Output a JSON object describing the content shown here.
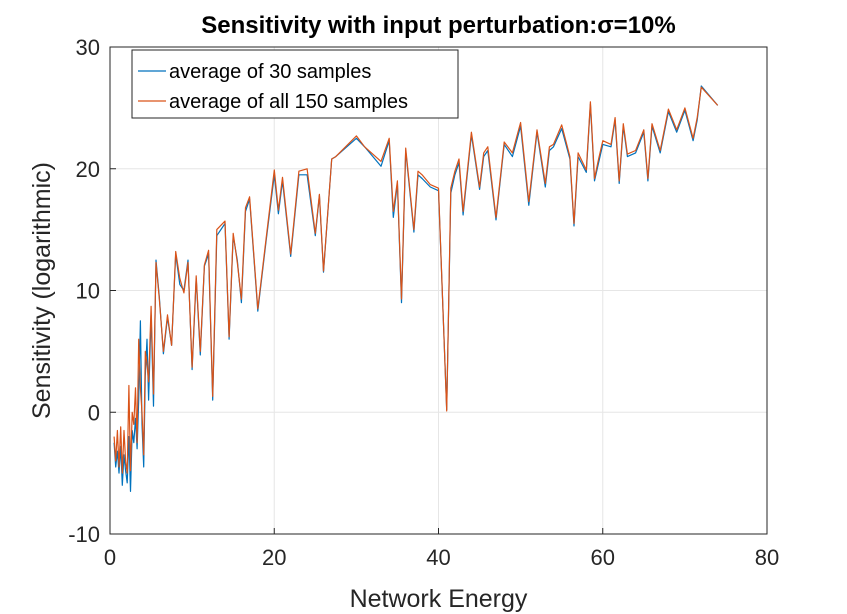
{
  "chart_data": {
    "type": "line",
    "title": "Sensitivity with input perturbation:σ=10%",
    "xlabel": "Network Energy",
    "ylabel": "Sensitivity (logarithmic)",
    "xlim": [
      0,
      80
    ],
    "ylim": [
      -10,
      30
    ],
    "xticks": [
      "0",
      "20",
      "40",
      "60",
      "80"
    ],
    "yticks": [
      "-10",
      "0",
      "10",
      "20",
      "30"
    ],
    "grid": true,
    "legend_position": "top-left",
    "series": [
      {
        "name": "average of 30 samples",
        "color": "#0072BD",
        "x": [
          0.5,
          0.7,
          0.9,
          1.1,
          1.3,
          1.5,
          1.7,
          1.9,
          2.1,
          2.3,
          2.5,
          2.7,
          2.9,
          3.1,
          3.3,
          3.5,
          3.7,
          3.9,
          4.1,
          4.3,
          4.5,
          4.7,
          5.0,
          5.3,
          5.6,
          6.0,
          6.5,
          7.0,
          7.5,
          8.0,
          8.5,
          9.0,
          9.5,
          10.0,
          10.5,
          11.0,
          11.5,
          12.0,
          12.5,
          13.0,
          14.0,
          14.5,
          15.0,
          15.5,
          16.0,
          16.5,
          17.0,
          18.0,
          19.0,
          20.0,
          20.5,
          21.0,
          22.0,
          23.0,
          24.0,
          25.0,
          25.5,
          26.0,
          27.0,
          27.5,
          30.0,
          31.0,
          33.0,
          34.0,
          34.5,
          35.0,
          35.5,
          36.0,
          37.0,
          37.5,
          38.0,
          39.0,
          40.0,
          41.0,
          41.5,
          42.0,
          42.5,
          43.0,
          44.0,
          45.0,
          45.5,
          46.0,
          47.0,
          48.0,
          49.0,
          50.0,
          51.0,
          52.0,
          53.0,
          53.5,
          54.0,
          55.0,
          56.0,
          56.5,
          57.0,
          58.0,
          58.5,
          59.0,
          59.5,
          60.0,
          61.0,
          61.5,
          62.0,
          62.5,
          63.0,
          64.0,
          65.0,
          65.5,
          66.0,
          67.0,
          68.0,
          69.0,
          70.0,
          71.0,
          71.5,
          72.0,
          74.0
        ],
        "y": [
          -2.5,
          -4.5,
          -3.2,
          -5.0,
          -2.8,
          -6.0,
          -3.5,
          -4.8,
          -5.8,
          -2.0,
          -6.5,
          -1.5,
          -2.5,
          -0.5,
          -3.0,
          1.0,
          7.5,
          -1.0,
          -4.5,
          3.0,
          6.0,
          1.0,
          8.0,
          0.5,
          12.5,
          9.5,
          4.8,
          7.8,
          5.5,
          13.0,
          10.5,
          10.0,
          12.5,
          3.5,
          11.0,
          4.7,
          12.0,
          13.0,
          1.0,
          14.5,
          15.5,
          6.0,
          14.5,
          12.5,
          9.0,
          16.5,
          17.5,
          8.3,
          14.0,
          19.5,
          16.3,
          19.0,
          12.8,
          19.5,
          19.5,
          14.5,
          17.8,
          11.5,
          20.8,
          21.0,
          22.5,
          21.8,
          20.2,
          22.3,
          16.0,
          18.8,
          9.0,
          21.5,
          14.8,
          19.5,
          19.2,
          18.5,
          18.2,
          0.2,
          18.0,
          19.5,
          20.5,
          16.2,
          22.8,
          18.3,
          21.0,
          21.5,
          15.8,
          22.0,
          21.0,
          23.5,
          17.0,
          23.0,
          18.5,
          21.5,
          21.8,
          23.3,
          20.8,
          15.3,
          21.0,
          19.7,
          25.3,
          19.0,
          20.5,
          22.0,
          21.8,
          24.0,
          18.8,
          23.5,
          21.0,
          21.3,
          23.0,
          19.0,
          23.5,
          21.3,
          24.7,
          23.0,
          24.8,
          22.3,
          24.0,
          26.8,
          25.2
        ]
      },
      {
        "name": "average of all 150 samples",
        "color": "#D95319",
        "x": [
          0.5,
          0.7,
          0.9,
          1.1,
          1.3,
          1.5,
          1.7,
          1.9,
          2.1,
          2.3,
          2.5,
          2.7,
          2.9,
          3.1,
          3.3,
          3.5,
          3.7,
          3.9,
          4.1,
          4.3,
          4.5,
          4.7,
          5.0,
          5.3,
          5.6,
          6.0,
          6.5,
          7.0,
          7.5,
          8.0,
          8.5,
          9.0,
          9.5,
          10.0,
          10.5,
          11.0,
          11.5,
          12.0,
          12.5,
          13.0,
          14.0,
          14.5,
          15.0,
          15.5,
          16.0,
          16.5,
          17.0,
          18.0,
          19.0,
          20.0,
          20.5,
          21.0,
          22.0,
          23.0,
          24.0,
          25.0,
          25.5,
          26.0,
          27.0,
          27.5,
          30.0,
          31.0,
          33.0,
          34.0,
          34.5,
          35.0,
          35.5,
          36.0,
          37.0,
          37.5,
          38.0,
          39.0,
          40.0,
          41.0,
          41.5,
          42.0,
          42.5,
          43.0,
          44.0,
          45.0,
          45.5,
          46.0,
          47.0,
          48.0,
          49.0,
          50.0,
          51.0,
          52.0,
          53.0,
          53.5,
          54.0,
          55.0,
          56.0,
          56.5,
          57.0,
          58.0,
          58.5,
          59.0,
          59.5,
          60.0,
          61.0,
          61.5,
          62.0,
          62.5,
          63.0,
          64.0,
          65.0,
          65.5,
          66.0,
          67.0,
          68.0,
          69.0,
          70.0,
          71.0,
          71.5,
          72.0,
          74.0
        ],
        "y": [
          -2.0,
          -4.0,
          -1.5,
          -4.5,
          -1.2,
          -5.0,
          -1.5,
          -4.0,
          -5.0,
          2.2,
          -4.8,
          0.0,
          -1.0,
          2.0,
          -2.5,
          6.0,
          2.0,
          0.0,
          -3.5,
          5.0,
          4.0,
          2.5,
          8.7,
          1.5,
          12.3,
          9.3,
          5.0,
          8.0,
          5.5,
          13.2,
          11.0,
          9.8,
          12.3,
          3.7,
          11.2,
          5.0,
          12.1,
          13.3,
          1.3,
          15.0,
          15.7,
          6.2,
          14.7,
          12.3,
          9.3,
          16.8,
          17.7,
          8.5,
          14.2,
          19.9,
          16.6,
          19.3,
          13.0,
          19.8,
          20.0,
          14.7,
          17.9,
          11.6,
          20.8,
          21.0,
          22.7,
          21.8,
          20.6,
          22.5,
          16.5,
          19.0,
          9.3,
          21.7,
          15.0,
          19.8,
          19.5,
          18.7,
          18.4,
          0.1,
          18.4,
          19.8,
          20.8,
          16.5,
          23.0,
          18.5,
          21.3,
          21.8,
          16.0,
          22.2,
          21.3,
          23.8,
          17.3,
          23.2,
          18.8,
          21.8,
          22.0,
          23.6,
          21.0,
          15.5,
          21.3,
          19.9,
          25.5,
          19.2,
          20.8,
          22.3,
          22.0,
          24.2,
          19.0,
          23.7,
          21.2,
          21.5,
          23.2,
          19.2,
          23.7,
          21.5,
          24.9,
          23.2,
          25.0,
          22.5,
          24.2,
          26.7,
          25.2
        ]
      }
    ]
  }
}
